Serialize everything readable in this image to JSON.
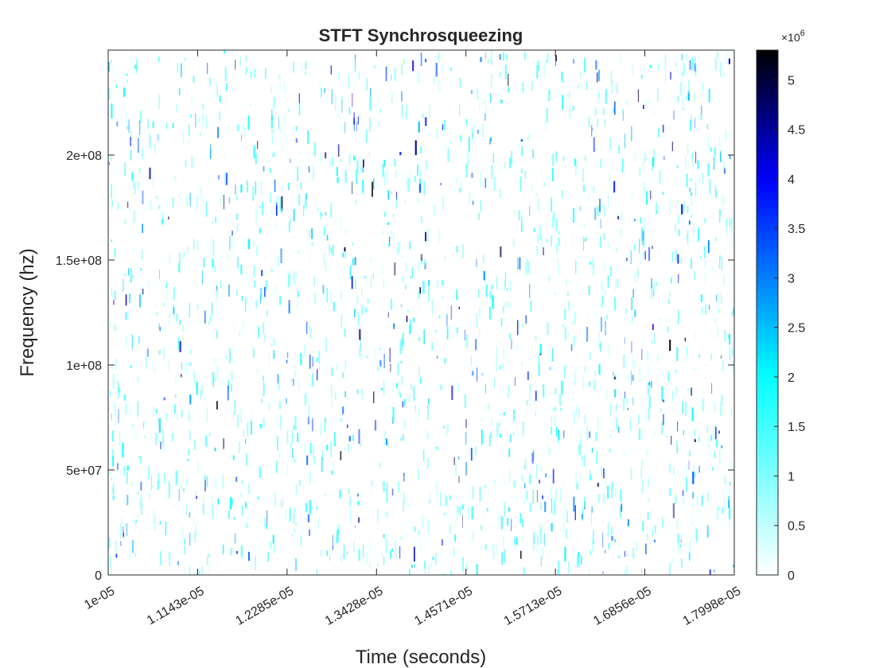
{
  "chart_data": {
    "type": "heatmap",
    "title": "STFT Synchrosqueezing",
    "xlabel": "Time (seconds)",
    "ylabel": "Frequency (hz)",
    "xlim": [
      1e-05,
      1.7998e-05
    ],
    "ylim": [
      0,
      250000000
    ],
    "x_tick_labels": [
      "1e-05",
      "1.1143e-05",
      "1.2285e-05",
      "1.3428e-05",
      "1.4571e-05",
      "1.5713e-05",
      "1.6856e-05",
      "1.7998e-05"
    ],
    "y_ticks": [
      0,
      50000000,
      100000000,
      150000000,
      200000000
    ],
    "y_tick_labels": [
      "0",
      "5e+07",
      "1e+08",
      "1.5e+08",
      "2e+08"
    ],
    "colorbar": {
      "range": [
        0,
        5300000
      ],
      "multiplier_label": "×10",
      "multiplier_exponent": "6",
      "ticks": [
        0,
        0.5,
        1,
        1.5,
        2,
        2.5,
        3,
        3.5,
        4,
        4.5,
        5
      ],
      "tick_labels": [
        "0",
        "0.5",
        "1",
        "1.5",
        "2",
        "2.5",
        "3",
        "3.5",
        "4",
        "4.5",
        "5"
      ],
      "colormap": [
        "#ffffff",
        "#00ffff",
        "#0000ff",
        "#000000"
      ],
      "colormap_positions": [
        0,
        0.38,
        0.75,
        1
      ]
    },
    "grid": false,
    "legend": "none"
  }
}
